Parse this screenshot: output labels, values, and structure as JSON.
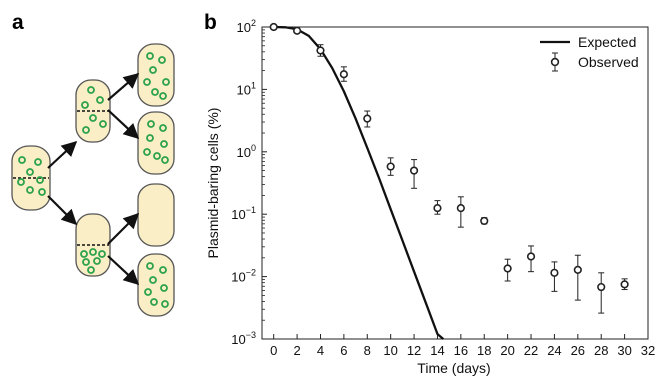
{
  "panels": {
    "a": "a",
    "b": "b"
  },
  "colors": {
    "cell_fill": "#f9eec6",
    "cell_stroke": "#555555",
    "plasmid": "#2ca24a",
    "curve": "#111111",
    "marker": "#222222"
  },
  "chart_data": {
    "type": "scatter",
    "xlabel": "Time (days)",
    "ylabel": "Plasmid-baring cells (%)",
    "xlim": [
      -1,
      32
    ],
    "ylim_log10": [
      -3,
      2
    ],
    "y_scale": "log",
    "x_ticks": [
      0,
      2,
      4,
      6,
      8,
      10,
      12,
      14,
      16,
      18,
      20,
      22,
      24,
      26,
      28,
      30,
      32
    ],
    "y_ticks": [
      {
        "exp": 2,
        "base": "10",
        "sup": "2"
      },
      {
        "exp": 1,
        "base": "10",
        "sup": "1"
      },
      {
        "exp": 0,
        "base": "10",
        "sup": "0"
      },
      {
        "exp": -1,
        "base": "10",
        "sup": "−1"
      },
      {
        "exp": -2,
        "base": "10",
        "sup": "−2"
      },
      {
        "exp": -3,
        "base": "10",
        "sup": "−3"
      }
    ],
    "grid": false,
    "legend_position": "top-right",
    "legend": [
      {
        "key": "expected",
        "label": "Expected",
        "style": "line"
      },
      {
        "key": "observed",
        "label": "Observed",
        "style": "marker-errorbar"
      }
    ],
    "series": [
      {
        "name": "Expected",
        "kind": "line",
        "points": [
          {
            "x": 0,
            "y": 100
          },
          {
            "x": 1,
            "y": 99
          },
          {
            "x": 2,
            "y": 92
          },
          {
            "x": 3,
            "y": 72
          },
          {
            "x": 4,
            "y": 44
          },
          {
            "x": 5,
            "y": 22
          },
          {
            "x": 6,
            "y": 9.3
          },
          {
            "x": 7,
            "y": 3.4
          },
          {
            "x": 8,
            "y": 1.15
          },
          {
            "x": 9,
            "y": 0.38
          },
          {
            "x": 10,
            "y": 0.12
          },
          {
            "x": 11,
            "y": 0.038
          },
          {
            "x": 12,
            "y": 0.012
          },
          {
            "x": 13,
            "y": 0.0038
          },
          {
            "x": 14,
            "y": 0.0012
          },
          {
            "x": 14.5,
            "y": 0.001
          }
        ]
      },
      {
        "name": "Observed",
        "kind": "points",
        "points": [
          {
            "x": 0,
            "y": 100,
            "lo": 100,
            "hi": 100
          },
          {
            "x": 2,
            "y": 87,
            "lo": 80,
            "hi": 95
          },
          {
            "x": 4,
            "y": 42,
            "lo": 34,
            "hi": 52
          },
          {
            "x": 6,
            "y": 17.5,
            "lo": 13.5,
            "hi": 23
          },
          {
            "x": 8,
            "y": 3.4,
            "lo": 2.5,
            "hi": 4.5
          },
          {
            "x": 10,
            "y": 0.58,
            "lo": 0.42,
            "hi": 0.8
          },
          {
            "x": 12,
            "y": 0.5,
            "lo": 0.26,
            "hi": 0.75
          },
          {
            "x": 14,
            "y": 0.125,
            "lo": 0.1,
            "hi": 0.165
          },
          {
            "x": 16,
            "y": 0.125,
            "lo": 0.062,
            "hi": 0.19
          },
          {
            "x": 18,
            "y": 0.078,
            "lo": 0.07,
            "hi": 0.088
          },
          {
            "x": 20,
            "y": 0.0135,
            "lo": 0.0085,
            "hi": 0.019
          },
          {
            "x": 22,
            "y": 0.021,
            "lo": 0.012,
            "hi": 0.031
          },
          {
            "x": 24,
            "y": 0.0115,
            "lo": 0.0058,
            "hi": 0.0172
          },
          {
            "x": 26,
            "y": 0.0128,
            "lo": 0.0042,
            "hi": 0.022
          },
          {
            "x": 28,
            "y": 0.0068,
            "lo": 0.0026,
            "hi": 0.0115
          },
          {
            "x": 30,
            "y": 0.0075,
            "lo": 0.0062,
            "hi": 0.0092
          }
        ]
      }
    ]
  }
}
